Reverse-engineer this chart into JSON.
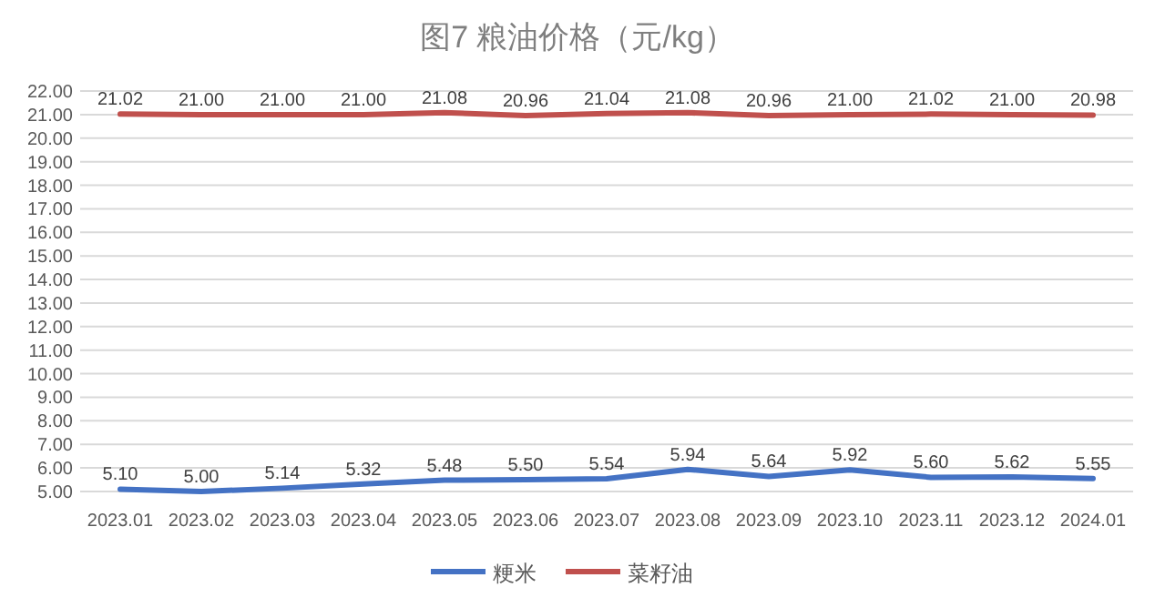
{
  "chart_data": {
    "type": "line",
    "title": "图7  粮油价格（元/kg）",
    "categories": [
      "2023.01",
      "2023.02",
      "2023.03",
      "2023.04",
      "2023.05",
      "2023.06",
      "2023.07",
      "2023.08",
      "2023.09",
      "2023.10",
      "2023.11",
      "2023.12",
      "2024.01"
    ],
    "series": [
      {
        "name": "粳米",
        "color": "#4472c4",
        "values": [
          5.1,
          5.0,
          5.14,
          5.32,
          5.48,
          5.5,
          5.54,
          5.94,
          5.64,
          5.92,
          5.6,
          5.62,
          5.55
        ],
        "value_labels": [
          "5.10",
          "5.00",
          "5.14",
          "5.32",
          "5.48",
          "5.50",
          "5.54",
          "5.94",
          "5.64",
          "5.92",
          "5.60",
          "5.62",
          "5.55"
        ]
      },
      {
        "name": "菜籽油",
        "color": "#c0504d",
        "values": [
          21.02,
          21.0,
          21.0,
          21.0,
          21.08,
          20.96,
          21.04,
          21.08,
          20.96,
          21.0,
          21.02,
          21.0,
          20.98
        ],
        "value_labels": [
          "21.02",
          "21.00",
          "21.00",
          "21.00",
          "21.08",
          "20.96",
          "21.04",
          "21.08",
          "20.96",
          "21.00",
          "21.02",
          "21.00",
          "20.98"
        ]
      }
    ],
    "ylim": [
      5,
      22
    ],
    "yticks": [
      {
        "value": 5,
        "label": "5.00"
      },
      {
        "value": 6,
        "label": "6.00"
      },
      {
        "value": 7,
        "label": "7.00"
      },
      {
        "value": 8,
        "label": "8.00"
      },
      {
        "value": 9,
        "label": "9.00"
      },
      {
        "value": 10,
        "label": "10.00"
      },
      {
        "value": 11,
        "label": "11.00"
      },
      {
        "value": 12,
        "label": "12.00"
      },
      {
        "value": 13,
        "label": "13.00"
      },
      {
        "value": 14,
        "label": "14.00"
      },
      {
        "value": 15,
        "label": "15.00"
      },
      {
        "value": 16,
        "label": "16.00"
      },
      {
        "value": 17,
        "label": "17.00"
      },
      {
        "value": 18,
        "label": "18.00"
      },
      {
        "value": 19,
        "label": "19.00"
      },
      {
        "value": 20,
        "label": "20.00"
      },
      {
        "value": 21,
        "label": "21.00"
      },
      {
        "value": 22,
        "label": "22.00"
      }
    ],
    "grid": "y",
    "legend": "bottom",
    "marker": "none",
    "line_style": "solid"
  }
}
